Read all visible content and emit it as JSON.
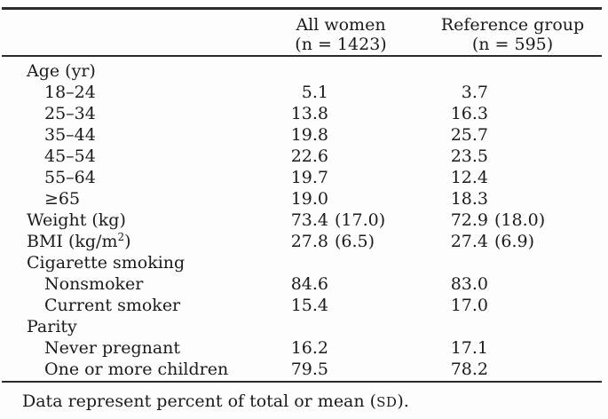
{
  "colors": {
    "text": "#1b1b1b",
    "rule": "#2b2b2b",
    "background": "#fdfdfd"
  },
  "table": {
    "columns": [
      {
        "title": "All women",
        "n_label": "(n = 1423)"
      },
      {
        "title": "Reference group",
        "n_label": "(n = 595)"
      }
    ],
    "rows": [
      {
        "label": "Age (yr)",
        "cells": [
          {
            "main": "",
            "paren": ""
          },
          {
            "main": "",
            "paren": ""
          }
        ]
      },
      {
        "label": "18–24",
        "cells": [
          {
            "main": "5.1",
            "paren": ""
          },
          {
            "main": "3.7",
            "paren": ""
          }
        ]
      },
      {
        "label": "25–34",
        "cells": [
          {
            "main": "13.8",
            "paren": ""
          },
          {
            "main": "16.3",
            "paren": ""
          }
        ]
      },
      {
        "label": "35–44",
        "cells": [
          {
            "main": "19.8",
            "paren": ""
          },
          {
            "main": "25.7",
            "paren": ""
          }
        ]
      },
      {
        "label": "45–54",
        "cells": [
          {
            "main": "22.6",
            "paren": ""
          },
          {
            "main": "23.5",
            "paren": ""
          }
        ]
      },
      {
        "label": "55–64",
        "cells": [
          {
            "main": "19.7",
            "paren": ""
          },
          {
            "main": "12.4",
            "paren": ""
          }
        ]
      },
      {
        "label": "≥65",
        "cells": [
          {
            "main": "19.0",
            "paren": ""
          },
          {
            "main": "18.3",
            "paren": ""
          }
        ]
      },
      {
        "label": "Weight (kg)",
        "cells": [
          {
            "main": "73.4",
            "paren": "(17.0)"
          },
          {
            "main": "72.9",
            "paren": "(18.0)"
          }
        ]
      },
      {
        "label_pre": "BMI (kg/m",
        "label_sup": "2",
        "label_post": ")",
        "cells": [
          {
            "main": "27.8",
            "paren": "(6.5)"
          },
          {
            "main": "27.4",
            "paren": "(6.9)"
          }
        ]
      },
      {
        "label": "Cigarette smoking",
        "cells": [
          {
            "main": "",
            "paren": ""
          },
          {
            "main": "",
            "paren": ""
          }
        ]
      },
      {
        "label": "Nonsmoker",
        "cells": [
          {
            "main": "84.6",
            "paren": ""
          },
          {
            "main": "83.0",
            "paren": ""
          }
        ]
      },
      {
        "label": "Current smoker",
        "cells": [
          {
            "main": "15.4",
            "paren": ""
          },
          {
            "main": "17.0",
            "paren": ""
          }
        ]
      },
      {
        "label": "Parity",
        "cells": [
          {
            "main": "",
            "paren": ""
          },
          {
            "main": "",
            "paren": ""
          }
        ]
      },
      {
        "label": "Never pregnant",
        "cells": [
          {
            "main": "16.2",
            "paren": ""
          },
          {
            "main": "17.1",
            "paren": ""
          }
        ]
      },
      {
        "label": "One or more children",
        "cells": [
          {
            "main": "79.5",
            "paren": ""
          },
          {
            "main": "78.2",
            "paren": ""
          }
        ]
      }
    ],
    "footnote": {
      "pre": "Data represent percent of total or mean (",
      "smallcaps": "SD",
      "post": ")."
    }
  }
}
